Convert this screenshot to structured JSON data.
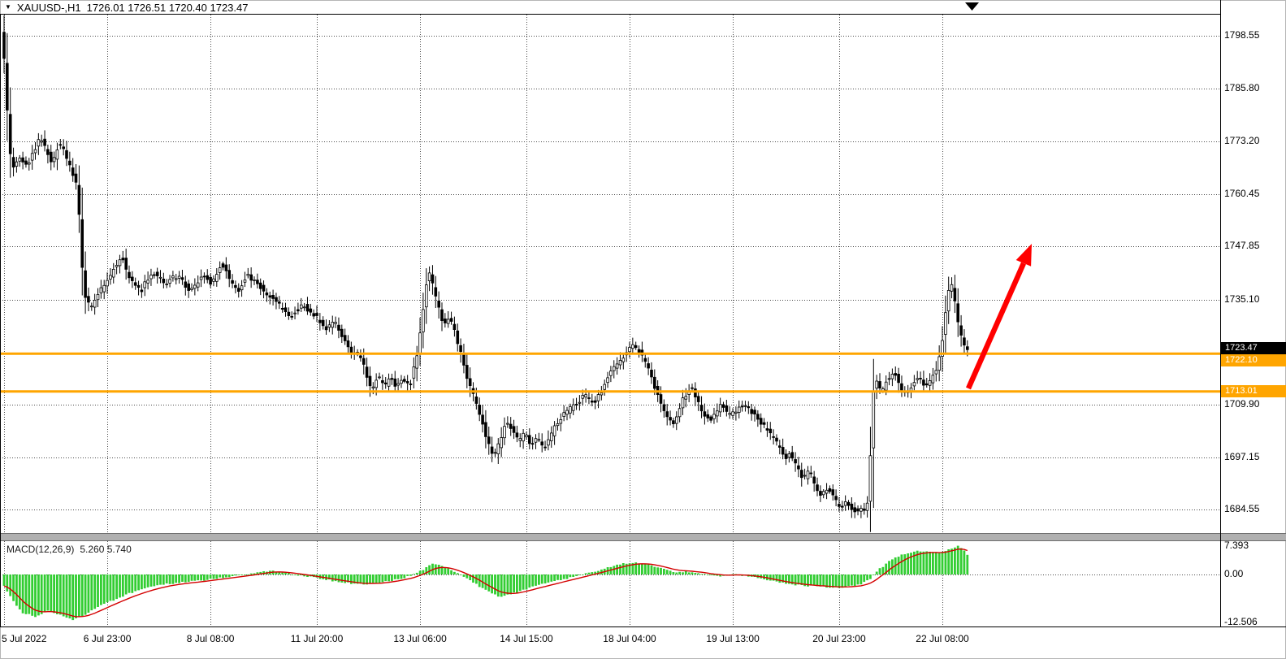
{
  "header": {
    "dropdown_icon": "▼",
    "symbol": "XAUUSD-,H1",
    "ohlc_text": "1726.01 1726.51 1720.40 1723.47",
    "ohlc": {
      "open": "1726.01",
      "high": "1726.51",
      "low": "1720.40",
      "close": "1723.47"
    }
  },
  "indicator_panel": {
    "label": "MACD(12,26,9)",
    "values": "5.260 5.740",
    "y_ticks": [
      7.393,
      0,
      -12.506
    ],
    "y_tick_labels": [
      "7.393",
      "0.00",
      "-12.506"
    ]
  },
  "price_axis": {
    "ticks": [
      1798.55,
      1785.8,
      1773.2,
      1760.45,
      1747.85,
      1735.1,
      1709.9,
      1697.15,
      1684.55
    ],
    "badges": [
      {
        "label": "1723.47",
        "price": 1723.47,
        "bg": "#000000",
        "fg": "#ffffff"
      },
      {
        "label": "1722.10",
        "price": 1722.1,
        "bg": "#FFA500",
        "fg": "#ffffff"
      },
      {
        "label": "1713.01",
        "price": 1713.01,
        "bg": "#FFA500",
        "fg": "#ffffff"
      }
    ]
  },
  "time_axis": {
    "ticks": [
      {
        "label": "5 Jul 2022",
        "i": 0
      },
      {
        "label": "6 Jul 23:00",
        "i": 33
      },
      {
        "label": "8 Jul 08:00",
        "i": 66
      },
      {
        "label": "11 Jul 20:00",
        "i": 100
      },
      {
        "label": "13 Jul 06:00",
        "i": 133
      },
      {
        "label": "14 Jul 15:00",
        "i": 167
      },
      {
        "label": "18 Jul 04:00",
        "i": 200
      },
      {
        "label": "19 Jul 13:00",
        "i": 233
      },
      {
        "label": "20 Jul 23:00",
        "i": 267
      },
      {
        "label": "22 Jul 08:00",
        "i": 300
      }
    ]
  },
  "colors": {
    "grid": "#4a4a4a",
    "bull": "#ffffff",
    "bear": "#000000",
    "candle_stroke": "#000000",
    "hline": "#FFA500",
    "histogram": "#32CD32",
    "signal": "#D40000",
    "arrow": "#FF0000"
  },
  "chart_data": [
    {
      "type": "candlestick",
      "title": "XAUUSD- H1",
      "x_ticks": [
        "5 Jul 2022",
        "6 Jul 23:00",
        "8 Jul 08:00",
        "11 Jul 20:00",
        "13 Jul 06:00",
        "14 Jul 15:00",
        "18 Jul 04:00",
        "19 Jul 13:00",
        "20 Jul 23:00",
        "22 Jul 08:00"
      ],
      "y_ticks": [
        1798.55,
        1785.8,
        1773.2,
        1760.45,
        1747.85,
        1735.1,
        1709.9,
        1697.15,
        1684.55
      ],
      "ylim": [
        1678.9,
        1803.6
      ],
      "grid": true,
      "bars_total": 309,
      "last_bar_ohlc": [
        1726.01,
        1726.51,
        1720.4,
        1723.47
      ],
      "current_price": 1723.47,
      "horizontal_lines": [
        1722.1,
        1713.01
      ],
      "annotations": [
        {
          "type": "arrow",
          "direction": "up-right",
          "color": "#FF0000"
        }
      ],
      "wick_overrides": [
        [
          278,
          1718,
          1685
        ]
      ],
      "price_path_anchors": [
        [
          0,
          1799
        ],
        [
          1,
          1787
        ],
        [
          2,
          1773
        ],
        [
          3,
          1766
        ],
        [
          5,
          1769
        ],
        [
          8,
          1767
        ],
        [
          10,
          1771
        ],
        [
          12,
          1774
        ],
        [
          14,
          1771
        ],
        [
          16,
          1768
        ],
        [
          18,
          1773
        ],
        [
          20,
          1770
        ],
        [
          22,
          1766
        ],
        [
          24,
          1762
        ],
        [
          25,
          1748
        ],
        [
          26,
          1737
        ],
        [
          28,
          1733
        ],
        [
          30,
          1736
        ],
        [
          33,
          1739
        ],
        [
          36,
          1743
        ],
        [
          38,
          1746
        ],
        [
          40,
          1741
        ],
        [
          44,
          1737
        ],
        [
          48,
          1742
        ],
        [
          52,
          1739
        ],
        [
          56,
          1741
        ],
        [
          60,
          1737
        ],
        [
          64,
          1741
        ],
        [
          67,
          1739
        ],
        [
          70,
          1744
        ],
        [
          72,
          1741
        ],
        [
          75,
          1737
        ],
        [
          78,
          1741
        ],
        [
          81,
          1739
        ],
        [
          84,
          1737
        ],
        [
          88,
          1734
        ],
        [
          92,
          1731
        ],
        [
          96,
          1734
        ],
        [
          100,
          1731
        ],
        [
          104,
          1728
        ],
        [
          106,
          1730
        ],
        [
          108,
          1727
        ],
        [
          110,
          1725
        ],
        [
          112,
          1722
        ],
        [
          114,
          1722
        ],
        [
          116,
          1718
        ],
        [
          118,
          1713
        ],
        [
          120,
          1717
        ],
        [
          122,
          1714
        ],
        [
          124,
          1717
        ],
        [
          126,
          1714
        ],
        [
          128,
          1716
        ],
        [
          130,
          1714
        ],
        [
          132,
          1720
        ],
        [
          134,
          1729
        ],
        [
          136,
          1743
        ],
        [
          137,
          1740
        ],
        [
          139,
          1734
        ],
        [
          141,
          1729
        ],
        [
          143,
          1731
        ],
        [
          145,
          1726
        ],
        [
          147,
          1721
        ],
        [
          149,
          1715
        ],
        [
          151,
          1711
        ],
        [
          153,
          1707
        ],
        [
          155,
          1701
        ],
        [
          157,
          1697
        ],
        [
          159,
          1701
        ],
        [
          161,
          1706
        ],
        [
          163,
          1704
        ],
        [
          165,
          1701
        ],
        [
          167,
          1703
        ],
        [
          169,
          1700
        ],
        [
          171,
          1702
        ],
        [
          173,
          1699
        ],
        [
          175,
          1702
        ],
        [
          177,
          1705
        ],
        [
          180,
          1708
        ],
        [
          183,
          1710
        ],
        [
          186,
          1712
        ],
        [
          189,
          1710
        ],
        [
          192,
          1714
        ],
        [
          194,
          1717
        ],
        [
          196,
          1719
        ],
        [
          198,
          1721
        ],
        [
          200,
          1723
        ],
        [
          202,
          1724
        ],
        [
          204,
          1722
        ],
        [
          206,
          1719
        ],
        [
          208,
          1715
        ],
        [
          210,
          1711
        ],
        [
          212,
          1708
        ],
        [
          214,
          1705
        ],
        [
          216,
          1708
        ],
        [
          218,
          1712
        ],
        [
          220,
          1714
        ],
        [
          222,
          1711
        ],
        [
          224,
          1708
        ],
        [
          226,
          1706
        ],
        [
          228,
          1708
        ],
        [
          230,
          1710
        ],
        [
          232,
          1707
        ],
        [
          234,
          1708
        ],
        [
          236,
          1710
        ],
        [
          240,
          1708
        ],
        [
          244,
          1704
        ],
        [
          248,
          1700
        ],
        [
          250,
          1697
        ],
        [
          252,
          1698
        ],
        [
          254,
          1695
        ],
        [
          256,
          1692
        ],
        [
          258,
          1694
        ],
        [
          260,
          1690
        ],
        [
          262,
          1688
        ],
        [
          264,
          1690
        ],
        [
          266,
          1687
        ],
        [
          268,
          1685
        ],
        [
          270,
          1686.5
        ],
        [
          272,
          1684
        ],
        [
          274,
          1685
        ],
        [
          275,
          1683.5
        ],
        [
          276,
          1685
        ],
        [
          277,
          1687
        ],
        [
          278,
          1710
        ],
        [
          279,
          1716
        ],
        [
          281,
          1713
        ],
        [
          283,
          1716
        ],
        [
          285,
          1718
        ],
        [
          287,
          1714
        ],
        [
          289,
          1712
        ],
        [
          291,
          1715
        ],
        [
          293,
          1717
        ],
        [
          295,
          1714
        ],
        [
          297,
          1716
        ],
        [
          299,
          1719
        ],
        [
          300,
          1723
        ],
        [
          301,
          1729
        ],
        [
          302,
          1735
        ],
        [
          303,
          1739.5
        ],
        [
          304,
          1737
        ],
        [
          305,
          1732
        ],
        [
          306,
          1727
        ],
        [
          307,
          1725
        ],
        [
          308,
          1723.5
        ]
      ]
    },
    {
      "type": "macd",
      "label": "MACD(12,26,9) 5.260 5.740",
      "current_values": [
        5.26,
        5.74
      ],
      "y_ticks": [
        7.393,
        0,
        -12.506
      ],
      "anchors": [
        [
          0,
          -3
        ],
        [
          3,
          -7
        ],
        [
          6,
          -10
        ],
        [
          10,
          -11
        ],
        [
          14,
          -9.5
        ],
        [
          18,
          -10.5
        ],
        [
          22,
          -11.8
        ],
        [
          26,
          -10.5
        ],
        [
          30,
          -8.5
        ],
        [
          34,
          -7
        ],
        [
          40,
          -5
        ],
        [
          46,
          -3.5
        ],
        [
          52,
          -2.5
        ],
        [
          58,
          -2
        ],
        [
          64,
          -1.5
        ],
        [
          70,
          -0.8
        ],
        [
          76,
          -0.2
        ],
        [
          82,
          0.6
        ],
        [
          86,
          1.0
        ],
        [
          90,
          0.4
        ],
        [
          96,
          -0.4
        ],
        [
          102,
          -1.2
        ],
        [
          108,
          -2.0
        ],
        [
          114,
          -2.6
        ],
        [
          120,
          -2.2
        ],
        [
          126,
          -1.2
        ],
        [
          130,
          -0.4
        ],
        [
          134,
          1.2
        ],
        [
          137,
          2.8
        ],
        [
          140,
          2.2
        ],
        [
          143,
          1.0
        ],
        [
          146,
          -0.2
        ],
        [
          150,
          -2.0
        ],
        [
          154,
          -4.2
        ],
        [
          158,
          -5.8
        ],
        [
          162,
          -5.2
        ],
        [
          166,
          -4.0
        ],
        [
          170,
          -3.0
        ],
        [
          174,
          -2.2
        ],
        [
          178,
          -1.4
        ],
        [
          182,
          -0.6
        ],
        [
          186,
          0.2
        ],
        [
          190,
          1.0
        ],
        [
          194,
          2.0
        ],
        [
          198,
          2.8
        ],
        [
          202,
          3.2
        ],
        [
          206,
          2.6
        ],
        [
          210,
          1.6
        ],
        [
          214,
          0.6
        ],
        [
          218,
          0.8
        ],
        [
          222,
          0.4
        ],
        [
          226,
          -0.2
        ],
        [
          230,
          -0.4
        ],
        [
          234,
          0.0
        ],
        [
          238,
          -0.4
        ],
        [
          242,
          -1.0
        ],
        [
          246,
          -1.8
        ],
        [
          250,
          -2.4
        ],
        [
          254,
          -2.8
        ],
        [
          258,
          -3.0
        ],
        [
          262,
          -3.2
        ],
        [
          266,
          -3.4
        ],
        [
          270,
          -3.2
        ],
        [
          274,
          -2.6
        ],
        [
          277,
          -1.2
        ],
        [
          280,
          1.5
        ],
        [
          284,
          4.0
        ],
        [
          288,
          5.5
        ],
        [
          292,
          6.2
        ],
        [
          296,
          6.0
        ],
        [
          299,
          5.6
        ],
        [
          301,
          6.2
        ],
        [
          303,
          6.9
        ],
        [
          305,
          7.393
        ],
        [
          307,
          6.2
        ],
        [
          308,
          5.26
        ]
      ]
    }
  ]
}
